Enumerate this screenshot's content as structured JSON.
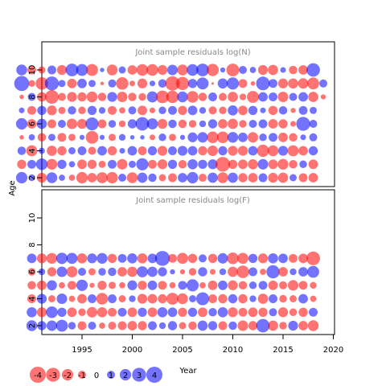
{
  "chart_data": [
    {
      "type": "scatter",
      "title": "Joint sample residuals log(N)",
      "ylabel": "Age",
      "xlim": [
        1992,
        2020
      ],
      "ylim": [
        1,
        11
      ],
      "yticks": [
        "2",
        "4",
        "6",
        "8",
        "10"
      ],
      "grid": false,
      "ages": [
        2,
        3,
        4,
        5,
        6,
        7,
        8,
        9,
        10
      ],
      "years": [
        1994,
        2019
      ],
      "residuals": {
        "10": [
          1.8,
          -1.2,
          -0.8,
          1.2,
          -1.5,
          2.5,
          2.2,
          -2.2,
          0.3,
          -1.8,
          0.8,
          -1.4,
          -2.1,
          -2.1,
          -1.5,
          1.7,
          -1.8,
          2.1,
          2.5,
          -2.3,
          0.4,
          -2.5,
          1.0,
          0.6,
          -1.5,
          -1.6,
          0.5,
          -1.1,
          -1.4,
          2.8
        ],
        "9": [
          3.5,
          -0.7,
          -2.4,
          3.0,
          0.8,
          -1.4,
          1.4,
          0.8,
          -0.2,
          1.0,
          -2.4,
          -0.5,
          -1.5,
          0.5,
          1.1,
          -3.2,
          -2.7,
          1.3,
          2.2,
          -0.1,
          1.6,
          2.3,
          -1.2,
          -0.3,
          2.9,
          1.2,
          -1.5,
          -1.6,
          -1.7,
          -2.2,
          1.0
        ],
        "8": [
          -0.3,
          1.0,
          -1.4,
          -2.9,
          -1.0,
          -1.5,
          -1.3,
          -1.8,
          -1.1,
          1.5,
          -1.7,
          -1.1,
          -0.9,
          1.9,
          -2.5,
          -2.4,
          1.8,
          -2.1,
          -1.1,
          1.2,
          -1.0,
          -1.6,
          -0.7,
          -2.2,
          1.4,
          1.2,
          -1.7,
          1.0,
          1.4,
          -1.6,
          -0.4
        ],
        "7": [
          0.5,
          -1.2,
          1.3,
          -1.5,
          -0.8,
          1.1,
          -0.9,
          1.3,
          0.7,
          -1.2,
          -0.6,
          1.0,
          -1.4,
          -0.5,
          0.9,
          1.2,
          -1.3,
          1.4,
          0.7,
          -1.0,
          -0.9,
          1.6,
          -1.4,
          1.3,
          0.5,
          -1.3,
          1.1,
          -0.4,
          1.2,
          0.8
        ],
        "6": [
          2.0,
          -1.4,
          1.6,
          -1.2,
          1.0,
          -1.7,
          -1.5,
          2.6,
          -1.2,
          0.9,
          -0.7,
          1.3,
          2.8,
          1.9,
          -1.5,
          1.1,
          -1.1,
          -0.9,
          0.7,
          1.3,
          -1.4,
          -1.6,
          -0.9,
          1.0,
          1.2,
          -1.4,
          -1.3,
          -0.5,
          3.0,
          1.0
        ],
        "5": [
          -0.3,
          0.6,
          -1.1,
          0.8,
          -1.2,
          -0.8,
          0.4,
          -2.5,
          0.4,
          -0.8,
          0.7,
          0.3,
          0.3,
          -0.5,
          0.9,
          -0.8,
          0.4,
          1.5,
          1.7,
          -2.1,
          -2.1,
          1.8,
          1.4,
          -1.7,
          0.9,
          1.2,
          -1.4,
          -1.1,
          0.5,
          1.0
        ],
        "4": [
          1.1,
          -1.9,
          0.6,
          -1.6,
          -1.3,
          0.8,
          1.2,
          -1.0,
          1.4,
          -1.3,
          0.5,
          1.4,
          -1.2,
          1.3,
          -1.5,
          1.2,
          1.5,
          1.4,
          -1.3,
          -1.7,
          1.3,
          -1.5,
          -1.5,
          1.4,
          -2.3,
          -1.8,
          1.5,
          -1.9,
          -1.4,
          1.3
        ],
        "3": [
          -1.3,
          1.2,
          2.1,
          -1.8,
          1.3,
          0.6,
          -1.4,
          -1.3,
          -0.8,
          1.2,
          -1.7,
          0.8,
          2.3,
          -1.2,
          -1.5,
          1.3,
          -1.1,
          1.6,
          1.3,
          1.5,
          -3.3,
          -1.3,
          -1.4,
          -1.6,
          1.7,
          -1.4,
          -1.8,
          -1.1,
          0.9,
          -1.4
        ],
        "2": [
          2.0,
          0.7,
          -1.5,
          1.8,
          0.6,
          -0.6,
          -2.0,
          -1.4,
          -1.9,
          -2.0,
          1.0,
          -1.8,
          1.6,
          1.1,
          -0.8,
          -1.2,
          1.4,
          2.0,
          -1.0,
          1.6,
          -1.8,
          1.6,
          -1.3,
          -1.4,
          1.2,
          -1.5,
          -1.6,
          0.8,
          -1.2,
          -1.4
        ]
      }
    },
    {
      "type": "scatter",
      "title": "Joint sample residuals log(F)",
      "xlabel": "Year",
      "xlim": [
        1992,
        2020
      ],
      "ylim": [
        1,
        11
      ],
      "yticks": [
        "2",
        "4",
        "6",
        "8",
        "10"
      ],
      "xticks": [
        "1995",
        "2000",
        "2005",
        "2010",
        "2015",
        "2020"
      ],
      "grid": false,
      "residuals": {
        "7": [
          1.4,
          -1.5,
          -1.8,
          2.0,
          1.9,
          -1.6,
          1.5,
          1.8,
          -1.3,
          1.2,
          1.6,
          -1.6,
          1.4,
          3.4,
          -1.2,
          -1.9,
          -1.3,
          1.0,
          -1.3,
          1.7,
          -2.1,
          -1.9,
          1.3,
          -1.5,
          1.6,
          1.4,
          -1.2,
          -1.4,
          -2.9
        ],
        "6": [
          -0.9,
          0.7,
          -1.3,
          1.7,
          -1.9,
          1.0,
          -0.8,
          0.9,
          1.1,
          -1.4,
          -1.6,
          1.9,
          1.6,
          1.3,
          0.4,
          -0.4,
          -0.9,
          1.3,
          -0.5,
          0.7,
          -1.6,
          -2.4,
          1.2,
          -0.6,
          2.7,
          -1.4,
          0.7,
          1.4,
          2.2
        ],
        "5": [
          -1.1,
          -1.4,
          1.6,
          -0.6,
          -1.2,
          2.0,
          -0.4,
          -1.3,
          -0.8,
          -0.6,
          1.5,
          -1.3,
          1.4,
          -1.2,
          -0.6,
          1.2,
          2.3,
          -0.6,
          -1.4,
          1.4,
          -1.5,
          -1.1,
          0.9,
          1.2,
          -1.4,
          -1.0,
          -1.7,
          -1.2,
          -0.7
        ],
        "4": [
          -1.2,
          1.5,
          -0.8,
          1.7,
          -0.6,
          -1.4,
          1.2,
          -2.1,
          1.2,
          -0.8,
          0.7,
          -1.5,
          -1.4,
          -1.3,
          -2.2,
          -1.8,
          0.8,
          2.6,
          -1.2,
          -1.3,
          1.3,
          -1.3,
          0.7,
          -1.6,
          1.2,
          -0.9,
          -0.8,
          1.4,
          -0.6
        ],
        "3": [
          1.6,
          -1.5,
          2.1,
          1.3,
          -1.4,
          -0.9,
          -1.7,
          -1.6,
          -1.2,
          1.2,
          -1.4,
          1.3,
          -1.4,
          1.6,
          1.4,
          -1.3,
          1.3,
          -1.4,
          1.1,
          1.6,
          -1.5,
          -1.2,
          -1.4,
          -1.3,
          1.0,
          -1.5,
          -0.9,
          -1.3,
          1.2
        ],
        "2": [
          1.8,
          1.3,
          1.7,
          2.2,
          0.9,
          -1.2,
          1.0,
          -0.6,
          -1.0,
          -1.2,
          -1.4,
          -1.3,
          1.2,
          0.7,
          1.3,
          -0.8,
          -1.1,
          1.6,
          1.3,
          -1.2,
          1.1,
          -1.7,
          -1.3,
          2.8,
          -1.6,
          -0.9,
          1.5,
          -1.4,
          -1.8
        ]
      }
    }
  ],
  "x_axis": {
    "label": "Year",
    "ticks": [
      "1995",
      "2000",
      "2005",
      "2010",
      "2015",
      "2020"
    ]
  },
  "legend": {
    "position": "bottom-left",
    "values": [
      "-4",
      "-3",
      "-2",
      "-1",
      "0",
      "1",
      "2",
      "3",
      "4"
    ]
  },
  "colors": {
    "positive": "#0000ff",
    "negative": "#ff0000"
  }
}
